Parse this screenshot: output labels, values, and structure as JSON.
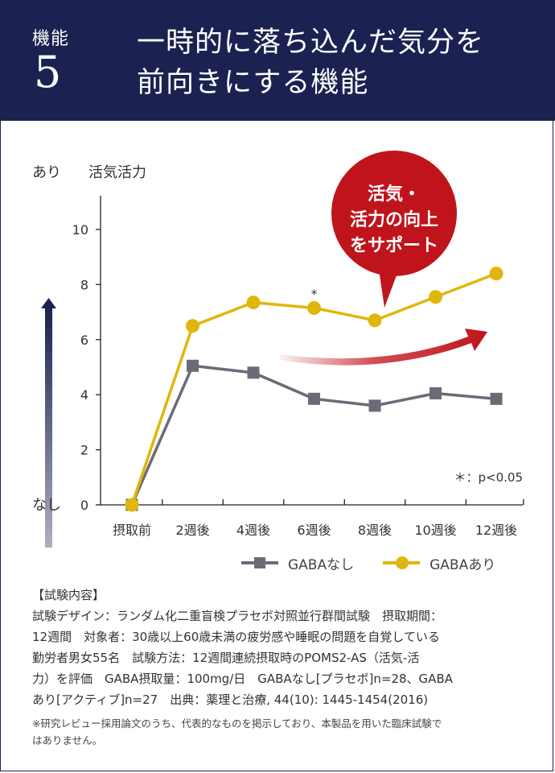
{
  "header": {
    "label": "機能",
    "number": "5",
    "title_line1": "一時的に落ち込んだ気分を",
    "title_line2": "前向きにする機能"
  },
  "colors": {
    "header_bg": "#1b2150",
    "gaba_with": "#e0b60a",
    "gaba_without": "#6b6b78",
    "callout": "#c0141c"
  },
  "callout": {
    "line1": "活気・",
    "line2": "活力の向上",
    "line3": "をサポート"
  },
  "chart_data": {
    "type": "line",
    "ylabel": "活気活力",
    "y_high_label": "あり",
    "y_low_label": "なし",
    "ylim": [
      0,
      11
    ],
    "y_ticks": [
      0,
      2,
      4,
      6,
      8,
      10
    ],
    "categories": [
      "摂取前",
      "2週後",
      "4週後",
      "6週後",
      "8週後",
      "10週後",
      "12週後"
    ],
    "series": [
      {
        "name": "GABAなし",
        "color": "#6b6b78",
        "marker": "square",
        "values": [
          0,
          5.05,
          4.8,
          3.85,
          3.6,
          4.05,
          3.85
        ]
      },
      {
        "name": "GABAあり",
        "color": "#e0b60a",
        "marker": "circle",
        "values": [
          0,
          6.5,
          7.35,
          7.15,
          6.7,
          7.55,
          8.4
        ]
      }
    ],
    "significance_mark": "*",
    "significance_index": 3,
    "significance_note": "＊：p<0.05",
    "grid": false,
    "legend_position": "bottom-right"
  },
  "details": {
    "heading": "【試験内容】",
    "lines": [
      "試験デザイン：ランダム化二重盲検プラセボ対照並行群間試験　摂取期間：",
      "12週間　対象者：30歳以上60歳未満の疲労感や睡眠の問題を自覚している",
      "勤労者男女55名　試験方法：12週間連続摂取時のPOMS2-AS（活気-活",
      "力）を評価　GABA摂取量：100mg/日　GABAなし[プラセボ]n=28、GABA",
      "あり[アクティブ]n=27　出典：薬理と治療, 44(10): 1445-1454(2016)"
    ]
  },
  "note": {
    "line1": "※研究レビュー採用論文のうち、代表的なものを掲示しており、本製品を用いた臨床試験で",
    "line2": "はありません。"
  }
}
